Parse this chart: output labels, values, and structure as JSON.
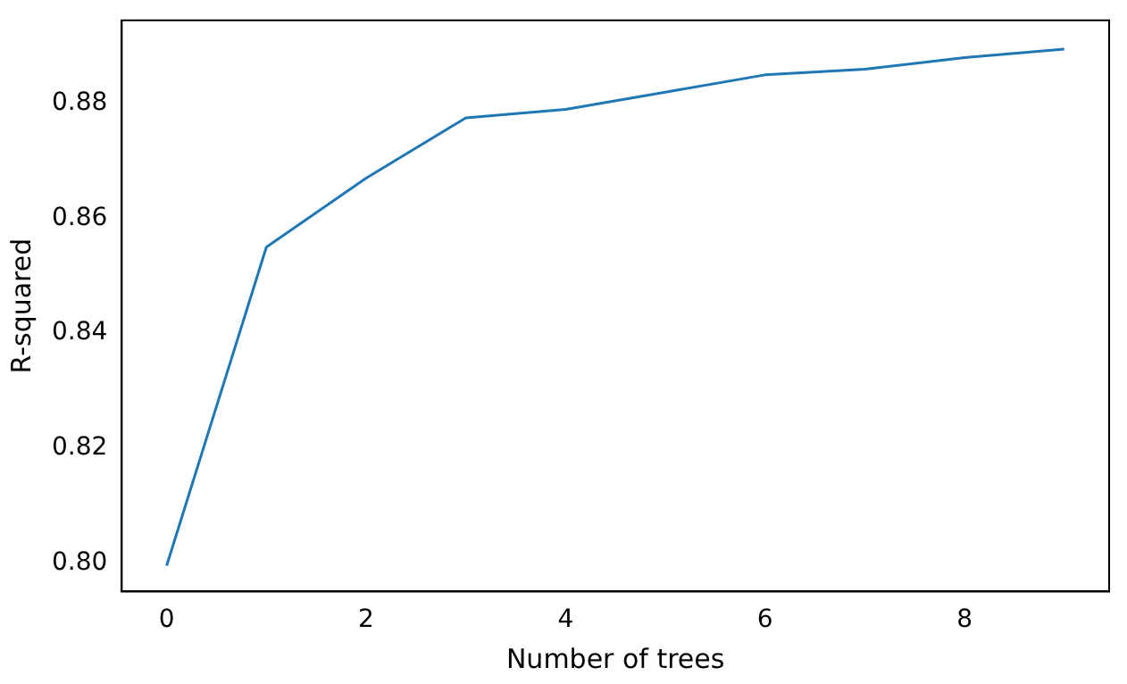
{
  "chart_data": {
    "type": "line",
    "xlabel": "Number of trees",
    "ylabel": "R-squared",
    "x": [
      0,
      1,
      2,
      3,
      4,
      5,
      6,
      7,
      8,
      9
    ],
    "series": [
      {
        "color": "#1f77b4",
        "values": [
          0.7995,
          0.855,
          0.867,
          0.8775,
          0.879,
          0.882,
          0.885,
          0.886,
          0.888,
          0.8895
        ]
      }
    ],
    "xlim": [
      -0.45,
      9.45
    ],
    "xticks": [
      0,
      2,
      4,
      6,
      8
    ],
    "ylim": [
      0.795,
      0.8945
    ],
    "yticks": [
      {
        "value": 0.8,
        "label": "0.80"
      },
      {
        "value": 0.82,
        "label": "0.82"
      },
      {
        "value": 0.84,
        "label": "0.84"
      },
      {
        "value": 0.86,
        "label": "0.86"
      },
      {
        "value": 0.88,
        "label": "0.88"
      }
    ],
    "grid": false,
    "legend": false,
    "marker": "none",
    "line_style": "solid"
  }
}
